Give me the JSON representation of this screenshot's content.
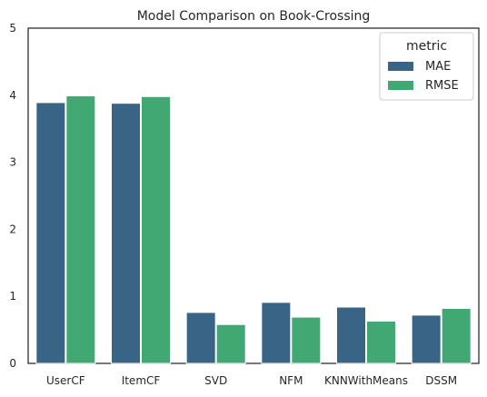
{
  "chart_data": {
    "type": "bar",
    "title": "Model Comparison on Book-Crossing",
    "xlabel": "",
    "ylabel": "",
    "categories": [
      "UserCF",
      "ItemCF",
      "SVD",
      "NFM",
      "KNNWithMeans",
      "DSSM"
    ],
    "series": [
      {
        "name": "MAE",
        "color": "#3a6486",
        "values": [
          3.89,
          3.88,
          0.76,
          0.91,
          0.84,
          0.72
        ]
      },
      {
        "name": "RMSE",
        "color": "#41a873",
        "values": [
          3.99,
          3.98,
          0.58,
          0.69,
          0.63,
          0.82
        ]
      }
    ],
    "ylim": [
      0,
      5
    ],
    "yticks": [
      "0",
      "1",
      "2",
      "3",
      "4",
      "5"
    ],
    "grid": false,
    "legend": {
      "title": "metric",
      "placement": "upper right"
    }
  }
}
